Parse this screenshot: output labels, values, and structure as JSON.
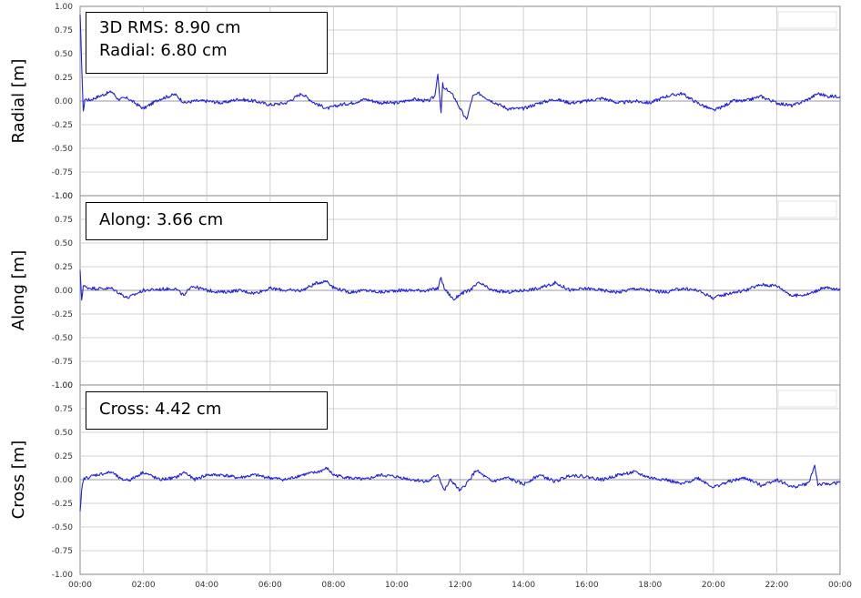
{
  "chart_data": [
    {
      "type": "line",
      "ylabel": "Radial [m]",
      "ylim": [
        -1.0,
        1.0
      ],
      "yticks": [
        "1.00",
        "0.75",
        "0.50",
        "0.25",
        "0.00",
        "-0.25",
        "-0.50",
        "-0.75",
        "-1.00"
      ],
      "annotations": [
        "3D RMS: 8.90 cm",
        "Radial: 6.80 cm"
      ],
      "series": [
        {
          "color": "#2020dd",
          "x": [
            0,
            0.05,
            0.1,
            0.15,
            0.3,
            0.6,
            1.0,
            1.2,
            1.5,
            2.0,
            2.5,
            3.0,
            3.3,
            3.6,
            4.0,
            4.5,
            5.0,
            5.5,
            6.0,
            6.5,
            7.0,
            7.4,
            7.8,
            8.2,
            8.6,
            9.0,
            9.5,
            10.0,
            10.5,
            11.0,
            11.2,
            11.3,
            11.35,
            11.4,
            11.45,
            11.5,
            11.6,
            11.8,
            12.0,
            12.2,
            12.4,
            12.6,
            13.0,
            13.5,
            14.0,
            14.5,
            15.0,
            15.5,
            16.0,
            16.5,
            17.0,
            17.5,
            18.0,
            18.5,
            19.0,
            19.5,
            20.0,
            20.3,
            20.6,
            21.0,
            21.5,
            22.0,
            22.5,
            23.0,
            23.3,
            23.6,
            24.0
          ],
          "y": [
            0.9,
            0.4,
            -0.12,
            0.02,
            0.01,
            0.05,
            0.1,
            0.02,
            0.03,
            -0.08,
            0.02,
            0.07,
            -0.02,
            0.0,
            0.0,
            -0.02,
            0.02,
            0.0,
            -0.04,
            -0.02,
            0.08,
            -0.02,
            -0.08,
            -0.04,
            -0.02,
            0.02,
            -0.02,
            -0.02,
            0.02,
            0.0,
            0.05,
            0.3,
            0.05,
            -0.13,
            0.18,
            0.12,
            0.12,
            0.05,
            -0.08,
            -0.2,
            0.05,
            0.08,
            0.0,
            -0.08,
            -0.08,
            -0.02,
            0.02,
            -0.02,
            0.0,
            0.03,
            -0.02,
            0.0,
            -0.02,
            0.05,
            0.08,
            -0.02,
            -0.1,
            -0.06,
            0.0,
            0.0,
            0.05,
            -0.02,
            -0.05,
            0.02,
            0.08,
            0.05,
            0.05
          ]
        }
      ]
    },
    {
      "type": "line",
      "ylabel": "Along [m]",
      "ylim": [
        -1.0,
        1.0
      ],
      "yticks": [
        "1.00",
        "0.75",
        "0.50",
        "0.25",
        "0.00",
        "-0.25",
        "-0.50",
        "-0.75",
        "-1.00"
      ],
      "annotations": [
        "Along: 3.66 cm"
      ],
      "series": [
        {
          "color": "#2020dd",
          "x": [
            0,
            0.05,
            0.1,
            0.2,
            0.5,
            1.0,
            1.5,
            2.0,
            2.5,
            3.0,
            3.3,
            3.5,
            4.0,
            4.5,
            5.0,
            5.5,
            6.0,
            6.5,
            7.0,
            7.5,
            7.8,
            8.0,
            8.5,
            9.0,
            9.5,
            10.0,
            10.5,
            11.0,
            11.3,
            11.4,
            11.5,
            11.7,
            11.8,
            12.0,
            12.3,
            12.6,
            13.0,
            13.5,
            14.0,
            14.5,
            15.0,
            15.5,
            16.0,
            16.5,
            17.0,
            17.5,
            18.0,
            18.5,
            19.0,
            19.5,
            20.0,
            20.5,
            21.0,
            21.5,
            22.0,
            22.5,
            23.0,
            23.5,
            24.0
          ],
          "y": [
            0.2,
            -0.1,
            0.05,
            0.03,
            0.02,
            0.02,
            -0.08,
            0.0,
            0.01,
            0.02,
            -0.06,
            0.05,
            0.0,
            -0.02,
            0.0,
            -0.03,
            0.02,
            0.0,
            0.0,
            0.08,
            0.1,
            0.03,
            -0.02,
            0.0,
            -0.02,
            0.0,
            0.0,
            0.0,
            0.02,
            0.14,
            0.02,
            -0.06,
            -0.1,
            -0.04,
            0.0,
            0.08,
            0.0,
            -0.02,
            0.0,
            0.02,
            0.08,
            0.0,
            0.02,
            0.0,
            -0.02,
            0.02,
            0.0,
            -0.02,
            0.02,
            0.0,
            -0.08,
            -0.03,
            0.0,
            0.06,
            0.05,
            -0.06,
            -0.04,
            0.03,
            0.0
          ]
        }
      ]
    },
    {
      "type": "line",
      "ylabel": "Cross [m]",
      "ylim": [
        -1.0,
        1.0
      ],
      "yticks": [
        "1.00",
        "0.75",
        "0.50",
        "0.25",
        "0.00",
        "-0.25",
        "-0.50",
        "-0.75",
        "-1.00"
      ],
      "xticks": [
        "00:00",
        "02:00",
        "04:00",
        "06:00",
        "08:00",
        "10:00",
        "12:00",
        "14:00",
        "16:00",
        "18:00",
        "20:00",
        "22:00",
        "00:00"
      ],
      "annotations": [
        "Cross: 4.42 cm"
      ],
      "series": [
        {
          "color": "#2020dd",
          "x": [
            0,
            0.05,
            0.1,
            0.2,
            0.5,
            1.0,
            1.3,
            1.6,
            2.0,
            2.5,
            3.0,
            3.3,
            3.6,
            4.0,
            4.5,
            5.0,
            5.5,
            6.0,
            6.5,
            7.0,
            7.5,
            7.8,
            8.0,
            8.5,
            9.0,
            9.5,
            10.0,
            10.5,
            11.0,
            11.3,
            11.5,
            11.7,
            12.0,
            12.3,
            12.5,
            13.0,
            13.5,
            14.0,
            14.5,
            15.0,
            15.5,
            16.0,
            16.5,
            17.0,
            17.5,
            18.0,
            18.5,
            19.0,
            19.5,
            20.0,
            20.5,
            21.0,
            21.5,
            22.0,
            22.5,
            23.0,
            23.2,
            23.3,
            23.5,
            24.0
          ],
          "y": [
            -0.35,
            -0.12,
            0.0,
            0.02,
            0.05,
            0.08,
            0.0,
            0.0,
            0.08,
            0.0,
            0.02,
            0.08,
            0.0,
            0.05,
            0.05,
            0.02,
            0.05,
            0.02,
            0.0,
            0.05,
            0.08,
            0.12,
            0.05,
            0.02,
            0.0,
            0.05,
            0.03,
            0.0,
            -0.02,
            0.06,
            -0.12,
            0.0,
            -0.12,
            0.0,
            0.1,
            -0.02,
            0.02,
            -0.05,
            0.05,
            -0.02,
            0.05,
            0.03,
            0.0,
            0.05,
            0.08,
            0.02,
            0.0,
            -0.05,
            0.02,
            -0.08,
            -0.02,
            0.02,
            -0.06,
            0.0,
            -0.08,
            -0.04,
            0.15,
            -0.05,
            -0.05,
            -0.03
          ]
        }
      ]
    }
  ]
}
